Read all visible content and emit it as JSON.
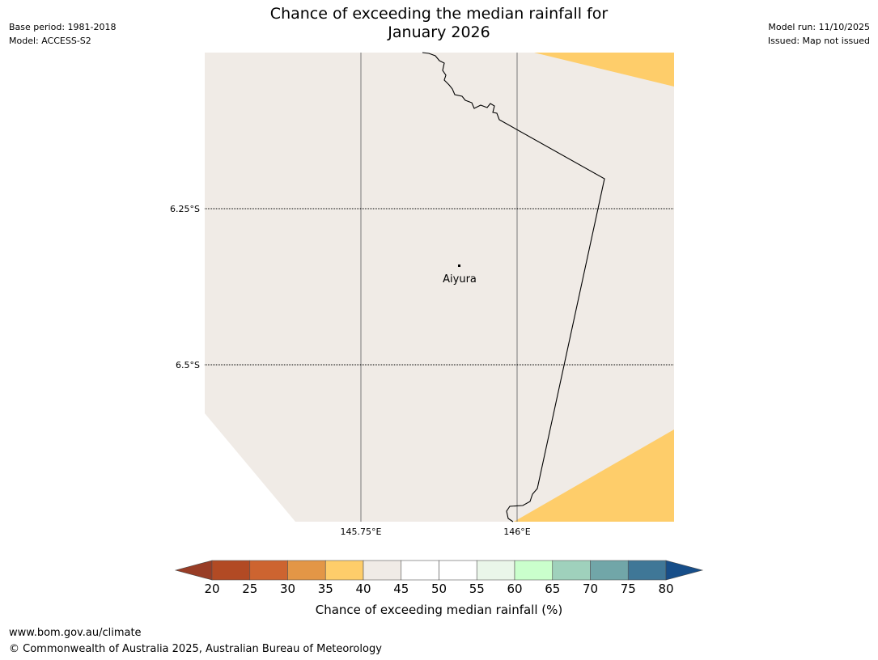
{
  "header": {
    "title_line1": "Chance of exceeding the median rainfall for",
    "title_line2": "January 2026",
    "base_period": "Base period: 1981-2018",
    "model": "Model: ACCESS-S2",
    "model_run": "Model run: 11/10/2025",
    "issued": "Issued: Map not issued"
  },
  "map": {
    "lat_labels": [
      "6.25°S",
      "6.5°S"
    ],
    "lon_labels": [
      "145.75°E",
      "146°E"
    ],
    "place": {
      "name": "Aiyura"
    }
  },
  "colorbar": {
    "label": "Chance of exceeding median rainfall (%)",
    "ticks": [
      "20",
      "25",
      "30",
      "35",
      "40",
      "45",
      "50",
      "55",
      "60",
      "65",
      "70",
      "75",
      "80"
    ],
    "colors": [
      "#b24a24",
      "#cd6430",
      "#e39646",
      "#fecd6a",
      "#f0ebe6",
      "#ffffff",
      "#ffffff",
      "#eaf6e9",
      "#caffcc",
      "#9fd1bc",
      "#71a6a8",
      "#3f7797"
    ],
    "under_color": "#983d26",
    "over_color": "#174e89"
  },
  "footer": {
    "url": "www.bom.gov.au/climate",
    "copyright": "© Commonwealth of Australia 2025, Australian Bureau of Meteorology"
  }
}
